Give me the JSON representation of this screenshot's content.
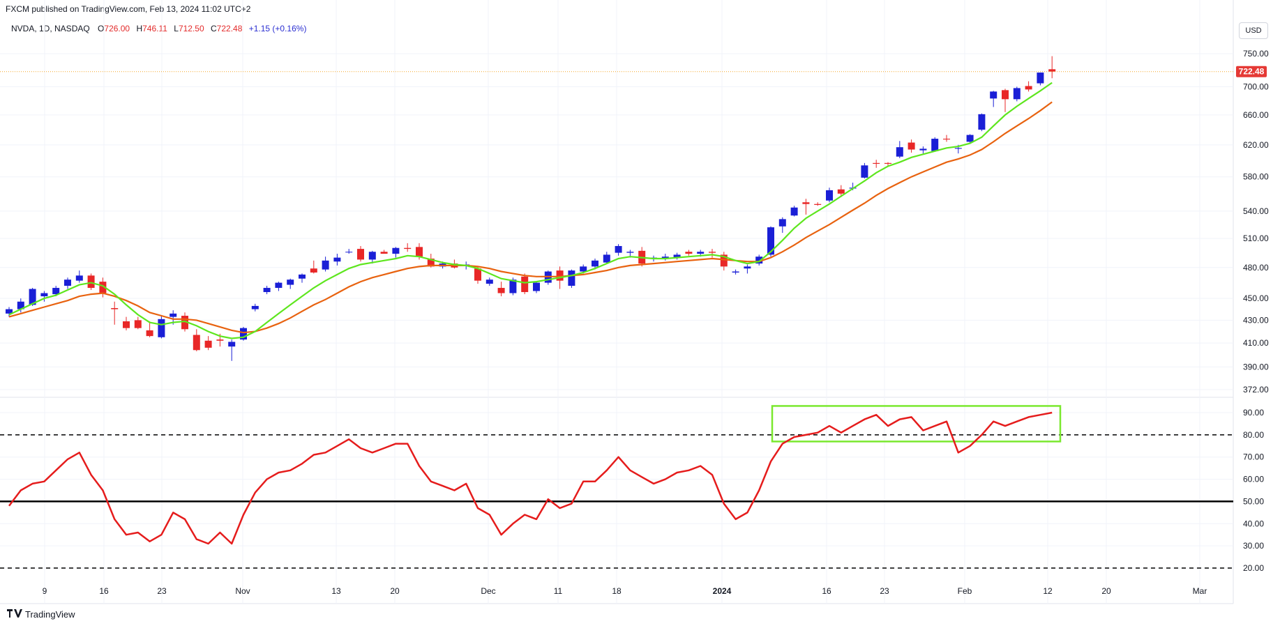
{
  "header": {
    "published": "FXCM published on TradingView.com, Feb 13, 2024 11:02 UTC+2"
  },
  "ohlc_bar": {
    "symbol": "NVDA, 1D, NASDAQ",
    "o_label": "O",
    "o_value": "726.00",
    "h_label": "H",
    "h_value": "746.11",
    "l_label": "L",
    "l_value": "712.50",
    "c_label": "C",
    "c_value": "722.48",
    "change": "+1.15 (+0.16%)"
  },
  "currency_button": "USD",
  "footer": {
    "logo_text": "TradingView"
  },
  "colors": {
    "up_candle": "#1a1fd6",
    "down_candle": "#e82727",
    "fast_ma": "#5ee61e",
    "slow_ma": "#e8620f",
    "rsi_line": "#e51c1c",
    "highlight_box": "#7ae82e",
    "last_price_badge": "#e53935",
    "last_price_line": "#f5a623"
  },
  "chart_data": [
    {
      "type": "candlestick",
      "title": "",
      "price_axis_ticks": [
        750,
        700,
        660,
        620,
        580,
        540,
        510,
        480,
        450,
        430,
        410,
        390,
        372
      ],
      "price_axis_labels": [
        "750.00",
        "700.00",
        "660.00",
        "620.00",
        "580.00",
        "540.00",
        "510.00",
        "480.00",
        "450.00",
        "430.00",
        "410.00",
        "390.00",
        "372.00"
      ],
      "x_axis_labels": [
        "9",
        "16",
        "23",
        "Nov",
        "13",
        "20",
        "Dec",
        "11",
        "18",
        "2024",
        "16",
        "23",
        "Feb",
        "12",
        "20",
        "Mar"
      ],
      "last_price": 722.48,
      "last_price_label": "722.48",
      "candles": [
        {
          "o": 436,
          "h": 442,
          "l": 433,
          "c": 440
        },
        {
          "o": 440,
          "h": 450,
          "l": 437,
          "c": 447
        },
        {
          "o": 444,
          "h": 460,
          "l": 443,
          "c": 459
        },
        {
          "o": 452,
          "h": 457,
          "l": 447,
          "c": 455
        },
        {
          "o": 454,
          "h": 462,
          "l": 452,
          "c": 460
        },
        {
          "o": 462,
          "h": 470,
          "l": 459,
          "c": 468
        },
        {
          "o": 467,
          "h": 477,
          "l": 465,
          "c": 472
        },
        {
          "o": 472,
          "h": 474,
          "l": 458,
          "c": 460
        },
        {
          "o": 466,
          "h": 470,
          "l": 451,
          "c": 455
        },
        {
          "o": 441,
          "h": 447,
          "l": 426,
          "c": 440
        },
        {
          "o": 429,
          "h": 433,
          "l": 421,
          "c": 423
        },
        {
          "o": 430,
          "h": 433,
          "l": 422,
          "c": 423
        },
        {
          "o": 421,
          "h": 429,
          "l": 415,
          "c": 416
        },
        {
          "o": 415,
          "h": 434,
          "l": 414,
          "c": 431
        },
        {
          "o": 433,
          "h": 439,
          "l": 426,
          "c": 436
        },
        {
          "o": 434,
          "h": 437,
          "l": 420,
          "c": 422
        },
        {
          "o": 417,
          "h": 422,
          "l": 403,
          "c": 404
        },
        {
          "o": 412,
          "h": 416,
          "l": 404,
          "c": 406
        },
        {
          "o": 413,
          "h": 418,
          "l": 407,
          "c": 412
        },
        {
          "o": 407,
          "h": 413,
          "l": 395,
          "c": 411
        },
        {
          "o": 413,
          "h": 424,
          "l": 412,
          "c": 423
        },
        {
          "o": 440,
          "h": 445,
          "l": 438,
          "c": 443
        },
        {
          "o": 456,
          "h": 462,
          "l": 454,
          "c": 460
        },
        {
          "o": 460,
          "h": 466,
          "l": 457,
          "c": 465
        },
        {
          "o": 463,
          "h": 469,
          "l": 459,
          "c": 468
        },
        {
          "o": 469,
          "h": 474,
          "l": 465,
          "c": 473
        },
        {
          "o": 479,
          "h": 487,
          "l": 474,
          "c": 475
        },
        {
          "o": 478,
          "h": 491,
          "l": 476,
          "c": 487
        },
        {
          "o": 486,
          "h": 494,
          "l": 482,
          "c": 490
        },
        {
          "o": 496,
          "h": 499,
          "l": 494,
          "c": 496
        },
        {
          "o": 499,
          "h": 502,
          "l": 486,
          "c": 488
        },
        {
          "o": 488,
          "h": 497,
          "l": 484,
          "c": 496
        },
        {
          "o": 496,
          "h": 498,
          "l": 494,
          "c": 494
        },
        {
          "o": 494,
          "h": 501,
          "l": 490,
          "c": 500
        },
        {
          "o": 500,
          "h": 505,
          "l": 496,
          "c": 499
        },
        {
          "o": 501,
          "h": 505,
          "l": 488,
          "c": 491
        },
        {
          "o": 489,
          "h": 494,
          "l": 480,
          "c": 481
        },
        {
          "o": 481,
          "h": 486,
          "l": 479,
          "c": 484
        },
        {
          "o": 484,
          "h": 488,
          "l": 479,
          "c": 480
        },
        {
          "o": 482,
          "h": 486,
          "l": 478,
          "c": 483
        },
        {
          "o": 479,
          "h": 481,
          "l": 464,
          "c": 467
        },
        {
          "o": 464,
          "h": 470,
          "l": 462,
          "c": 468
        },
        {
          "o": 460,
          "h": 466,
          "l": 452,
          "c": 455
        },
        {
          "o": 455,
          "h": 470,
          "l": 453,
          "c": 468
        },
        {
          "o": 471,
          "h": 474,
          "l": 454,
          "c": 456
        },
        {
          "o": 457,
          "h": 466,
          "l": 455,
          "c": 465
        },
        {
          "o": 465,
          "h": 477,
          "l": 463,
          "c": 476
        },
        {
          "o": 477,
          "h": 481,
          "l": 459,
          "c": 467
        },
        {
          "o": 462,
          "h": 478,
          "l": 460,
          "c": 477
        },
        {
          "o": 476,
          "h": 483,
          "l": 474,
          "c": 481
        },
        {
          "o": 481,
          "h": 489,
          "l": 478,
          "c": 487
        },
        {
          "o": 485,
          "h": 496,
          "l": 484,
          "c": 493
        },
        {
          "o": 495,
          "h": 504,
          "l": 492,
          "c": 502
        },
        {
          "o": 495,
          "h": 498,
          "l": 490,
          "c": 496
        },
        {
          "o": 497,
          "h": 501,
          "l": 481,
          "c": 484
        },
        {
          "o": 489,
          "h": 492,
          "l": 486,
          "c": 490
        },
        {
          "o": 489,
          "h": 494,
          "l": 487,
          "c": 491
        },
        {
          "o": 490,
          "h": 495,
          "l": 488,
          "c": 493
        },
        {
          "o": 496,
          "h": 498,
          "l": 492,
          "c": 494
        },
        {
          "o": 494,
          "h": 498,
          "l": 491,
          "c": 496
        },
        {
          "o": 496,
          "h": 499,
          "l": 490,
          "c": 495
        },
        {
          "o": 493,
          "h": 496,
          "l": 477,
          "c": 481
        },
        {
          "o": 475,
          "h": 478,
          "l": 473,
          "c": 476
        },
        {
          "o": 479,
          "h": 483,
          "l": 474,
          "c": 481
        },
        {
          "o": 484,
          "h": 493,
          "l": 482,
          "c": 491
        },
        {
          "o": 493,
          "h": 523,
          "l": 491,
          "c": 522
        },
        {
          "o": 523,
          "h": 533,
          "l": 516,
          "c": 531
        },
        {
          "o": 535,
          "h": 546,
          "l": 534,
          "c": 544
        },
        {
          "o": 550,
          "h": 554,
          "l": 536,
          "c": 548
        },
        {
          "o": 548,
          "h": 550,
          "l": 546,
          "c": 547
        },
        {
          "o": 552,
          "h": 567,
          "l": 550,
          "c": 564
        },
        {
          "o": 565,
          "h": 570,
          "l": 556,
          "c": 560
        },
        {
          "o": 566,
          "h": 573,
          "l": 564,
          "c": 567
        },
        {
          "o": 579,
          "h": 597,
          "l": 578,
          "c": 594
        },
        {
          "o": 597,
          "h": 601,
          "l": 591,
          "c": 596
        },
        {
          "o": 597,
          "h": 598,
          "l": 592,
          "c": 596
        },
        {
          "o": 605,
          "h": 625,
          "l": 603,
          "c": 617
        },
        {
          "o": 623,
          "h": 627,
          "l": 610,
          "c": 614
        },
        {
          "o": 613,
          "h": 618,
          "l": 609,
          "c": 615
        },
        {
          "o": 612,
          "h": 630,
          "l": 611,
          "c": 628
        },
        {
          "o": 628,
          "h": 633,
          "l": 624,
          "c": 627
        },
        {
          "o": 615,
          "h": 620,
          "l": 609,
          "c": 616
        },
        {
          "o": 624,
          "h": 634,
          "l": 622,
          "c": 633
        },
        {
          "o": 640,
          "h": 662,
          "l": 638,
          "c": 661
        },
        {
          "o": 683,
          "h": 694,
          "l": 671,
          "c": 693
        },
        {
          "o": 695,
          "h": 697,
          "l": 664,
          "c": 682
        },
        {
          "o": 682,
          "h": 700,
          "l": 679,
          "c": 698
        },
        {
          "o": 701,
          "h": 708,
          "l": 693,
          "c": 696
        },
        {
          "o": 705,
          "h": 721,
          "l": 702,
          "c": 721
        },
        {
          "o": 726,
          "h": 746.11,
          "l": 712.5,
          "c": 722.48
        }
      ],
      "fast_ma": [
        435,
        440,
        445,
        450,
        453,
        458,
        463,
        465,
        462,
        454,
        444,
        435,
        428,
        426,
        428,
        429,
        425,
        420,
        416,
        414,
        415,
        420,
        428,
        436,
        444,
        452,
        460,
        467,
        473,
        479,
        483,
        485,
        487,
        489,
        492,
        491,
        488,
        485,
        483,
        482,
        479,
        474,
        469,
        467,
        465,
        466,
        468,
        470,
        472,
        475,
        479,
        484,
        489,
        491,
        490,
        489,
        489,
        490,
        491,
        492,
        493,
        491,
        487,
        484,
        486,
        496,
        508,
        521,
        532,
        540,
        548,
        557,
        566,
        575,
        585,
        593,
        598,
        604,
        608,
        612,
        616,
        618,
        622,
        630,
        645,
        660,
        672,
        683,
        694,
        706
      ],
      "slow_ma": [
        433,
        436,
        439,
        442,
        445,
        448,
        452,
        454,
        455,
        452,
        448,
        443,
        437,
        434,
        431,
        431,
        430,
        427,
        424,
        421,
        419,
        420,
        423,
        427,
        432,
        438,
        444,
        449,
        455,
        461,
        466,
        470,
        473,
        476,
        479,
        481,
        482,
        482,
        482,
        482,
        481,
        479,
        476,
        474,
        472,
        471,
        471,
        471,
        472,
        473,
        475,
        477,
        480,
        482,
        483,
        484,
        485,
        486,
        487,
        488,
        489,
        488,
        487,
        486,
        486,
        490,
        496,
        503,
        511,
        518,
        525,
        533,
        541,
        549,
        558,
        566,
        573,
        580,
        586,
        592,
        598,
        602,
        607,
        614,
        624,
        635,
        645,
        655,
        666,
        678
      ]
    },
    {
      "type": "line",
      "title": "",
      "axis_ticks": [
        90,
        80,
        70,
        60,
        50,
        40,
        30,
        20
      ],
      "axis_labels": [
        "90.00",
        "80.00",
        "70.00",
        "60.00",
        "50.00",
        "40.00",
        "30.00",
        "20.00"
      ],
      "ylim": [
        17,
        95
      ],
      "reference_lines": [
        {
          "value": 80,
          "style": "dashed"
        },
        {
          "value": 50,
          "style": "solid"
        },
        {
          "value": 20,
          "style": "dashed"
        }
      ],
      "highlight_box": {
        "y_range": [
          77,
          93
        ]
      },
      "series": [
        {
          "values": [
            48,
            55,
            58,
            59,
            64,
            69,
            72,
            62,
            55,
            42,
            35,
            36,
            32,
            35,
            45,
            42,
            33,
            31,
            36,
            31,
            44,
            54,
            60,
            63,
            64,
            67,
            71,
            72,
            75,
            78,
            74,
            72,
            74,
            76,
            76,
            66,
            59,
            57,
            55,
            58,
            47,
            44,
            35,
            40,
            44,
            42,
            51,
            47,
            49,
            59,
            59,
            64,
            70,
            64,
            61,
            58,
            60,
            63,
            64,
            66,
            62,
            49,
            42,
            45,
            55,
            68,
            76,
            79,
            80,
            81,
            84,
            81,
            84,
            87,
            89,
            84,
            87,
            88,
            82,
            84,
            86,
            72,
            75,
            80,
            86,
            84,
            86,
            88,
            89,
            90
          ]
        }
      ]
    }
  ]
}
